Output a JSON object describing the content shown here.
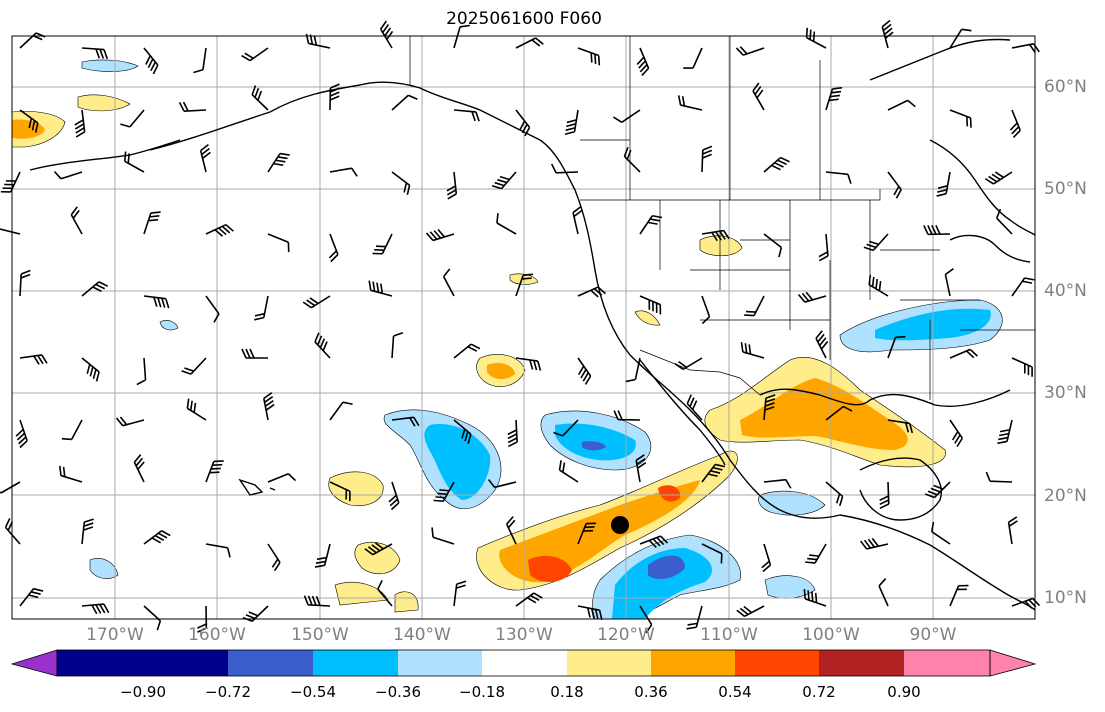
{
  "title": "2025061600 F060",
  "lon_labels": [
    "170°W",
    "160°W",
    "150°W",
    "140°W",
    "130°W",
    "120°W",
    "110°W",
    "100°W",
    "90°W"
  ],
  "lat_labels": [
    "60°N",
    "50°N",
    "40°N",
    "30°N",
    "20°N",
    "10°N"
  ],
  "colorbar": {
    "ticks": [
      "−0.90",
      "−0.72",
      "−0.54",
      "−0.36",
      "−0.18",
      "0.18",
      "0.36",
      "0.54",
      "0.72",
      "0.90"
    ],
    "colors": [
      "#9932cc",
      "#00008b",
      "#3a5fcd",
      "#00bfff",
      "#b0e2ff",
      "#ffffff",
      "#ffec8b",
      "#ffa500",
      "#ff4500",
      "#b22222",
      "#ff82ab"
    ]
  },
  "map": {
    "land_outline_color": "#000000",
    "grid_color": "#a9a9a9",
    "wind_barb_color": "#000000",
    "storm_marker": "filled-circle"
  }
}
